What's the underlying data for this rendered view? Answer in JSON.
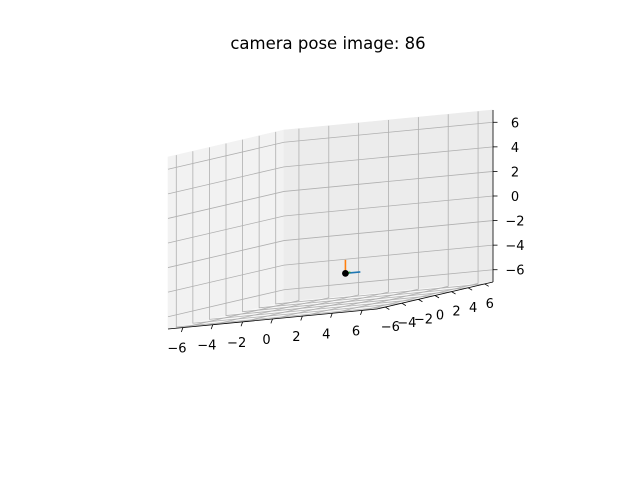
{
  "chart_data": {
    "type": "3d-line",
    "title": "camera pose image: 86",
    "xlabel": "",
    "ylabel": "",
    "zlabel": "",
    "xlim": [
      -7,
      7
    ],
    "ylim": [
      -7,
      7
    ],
    "zlim": [
      -7,
      7
    ],
    "x_ticks": [
      "−6",
      "−4",
      "−2",
      "0",
      "2",
      "4",
      "6"
    ],
    "y_ticks": [
      "−6",
      "−4",
      "−2",
      "0",
      "2",
      "4",
      "6"
    ],
    "z_ticks": [
      "−6",
      "−4",
      "−2",
      "0",
      "2",
      "4",
      "6"
    ],
    "grid": true,
    "camera_center": {
      "x": 1,
      "y": 0,
      "z": -4.5,
      "color": "#000000"
    },
    "pose_axes": [
      {
        "axis": "x-axis",
        "color": "#1f77b4",
        "to": {
          "x": 2,
          "y": 0,
          "z": -4.5
        }
      },
      {
        "axis": "y-axis",
        "color": "#2ca02c",
        "to": {
          "x": 1,
          "y": 0.6,
          "z": -4.5
        }
      },
      {
        "axis": "z-axis",
        "color": "#ff7f0e",
        "to": {
          "x": 1,
          "y": 0,
          "z": -3.4
        }
      }
    ]
  }
}
